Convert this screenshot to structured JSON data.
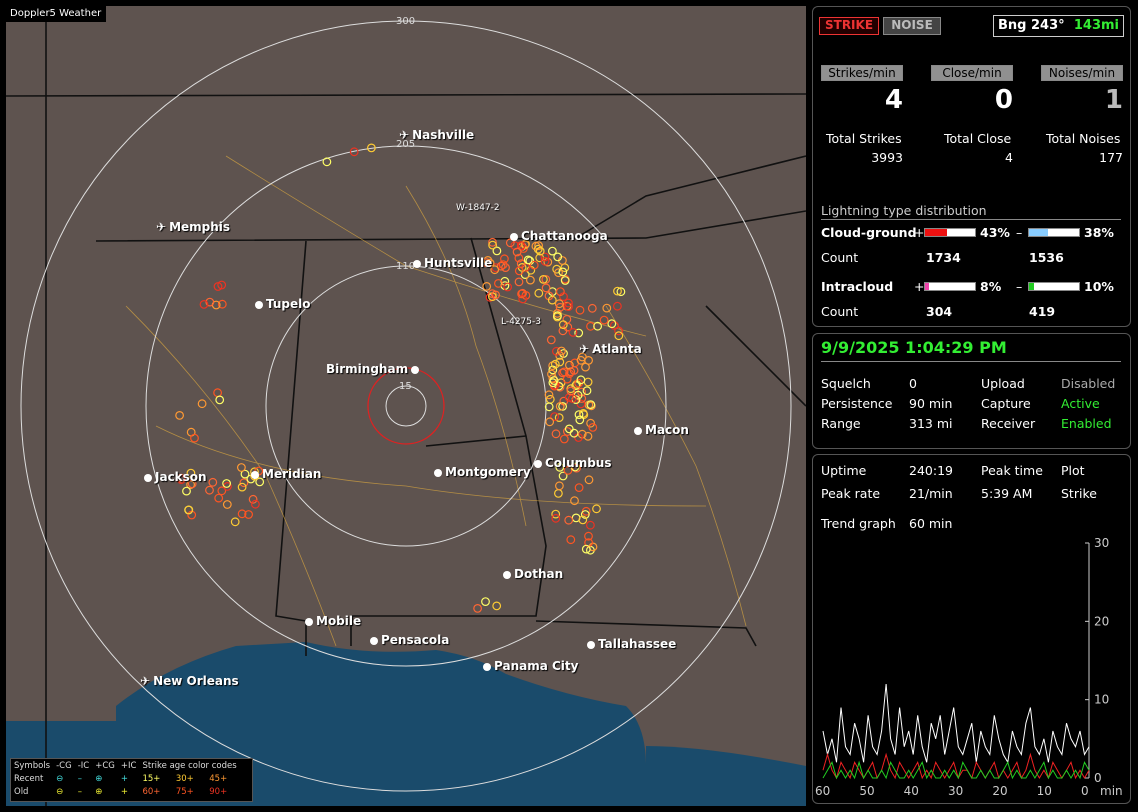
{
  "app": {
    "title": "Doppler5 Weather"
  },
  "map": {
    "rings": [
      "300",
      "205",
      "110",
      "15"
    ],
    "markers": {
      "west": "W-1847-2",
      "local": "L-4275-3"
    },
    "cities": [
      {
        "name": "Nashville",
        "type": "airport"
      },
      {
        "name": "Memphis",
        "type": "airport"
      },
      {
        "name": "Chattanooga",
        "type": "city"
      },
      {
        "name": "Huntsville",
        "type": "city"
      },
      {
        "name": "Tupelo",
        "type": "city"
      },
      {
        "name": "Atlanta",
        "type": "airport"
      },
      {
        "name": "Birmingham",
        "type": "city"
      },
      {
        "name": "Macon",
        "type": "city"
      },
      {
        "name": "Jackson",
        "type": "city"
      },
      {
        "name": "Meridian",
        "type": "city"
      },
      {
        "name": "Montgomery",
        "type": "city"
      },
      {
        "name": "Columbus",
        "type": "city"
      },
      {
        "name": "Dothan",
        "type": "city"
      },
      {
        "name": "Mobile",
        "type": "city"
      },
      {
        "name": "Pensacola",
        "type": "city"
      },
      {
        "name": "Tallahassee",
        "type": "city"
      },
      {
        "name": "Panama City",
        "type": "city"
      },
      {
        "name": "New Orleans",
        "type": "airport"
      }
    ],
    "legend": {
      "row_head": [
        "Symbols",
        "-CG",
        "-IC",
        "+CG",
        "+IC",
        "Strike age color codes"
      ],
      "recent_label": "Recent",
      "old_label": "Old",
      "recent_ages": [
        "15+",
        "30+",
        "45+"
      ],
      "old_ages": [
        "60+",
        "75+",
        "90+"
      ],
      "age_colors": [
        "#ffff66",
        "#ffcc33",
        "#ff9933",
        "#ff6633",
        "#ff5522",
        "#ee3322"
      ]
    }
  },
  "status": {
    "strike_button": "STRIKE",
    "noise_button": "NOISE",
    "bearing_label": "Bng 243°",
    "bearing_distance": "143mi",
    "strikes_per_min_label": "Strikes/min",
    "close_per_min_label": "Close/min",
    "noises_per_min_label": "Noises/min",
    "strikes_per_min": "4",
    "close_per_min": "0",
    "noises_per_min": "1",
    "total_strikes_label": "Total Strikes",
    "total_close_label": "Total Close",
    "total_noises_label": "Total Noises",
    "total_strikes": "3993",
    "total_close": "4",
    "total_noises": "177"
  },
  "distribution": {
    "title": "Lightning type distribution",
    "cg_label": "Cloud-ground",
    "ic_label": "Intracloud",
    "count_label": "Count",
    "plus": "+",
    "minus": "–",
    "cg_pos_pct": "43%",
    "cg_pos_fill": 0.43,
    "cg_pos_color": "#ee1111",
    "cg_neg_pct": "38%",
    "cg_neg_fill": 0.38,
    "cg_neg_color": "#88ccff",
    "cg_pos_count": "1734",
    "cg_neg_count": "1536",
    "ic_pos_pct": "8%",
    "ic_pos_fill": 0.08,
    "ic_pos_color": "#ee44aa",
    "ic_neg_pct": "10%",
    "ic_neg_fill": 0.1,
    "ic_neg_color": "#22cc22",
    "ic_pos_count": "304",
    "ic_neg_count": "419"
  },
  "settings": {
    "datetime": "9/9/2025 1:04:29 PM",
    "squelch_label": "Squelch",
    "squelch": "0",
    "persistence_label": "Persistence",
    "persistence": "90 min",
    "range_label": "Range",
    "range": "313 mi",
    "upload_label": "Upload",
    "upload": "Disabled",
    "capture_label": "Capture",
    "capture": "Active",
    "receiver_label": "Receiver",
    "receiver": "Enabled"
  },
  "trend": {
    "uptime_label": "Uptime",
    "uptime": "240:19",
    "peak_time_label": "Peak time",
    "peak_time": "5:39 AM",
    "plot_label": "Plot",
    "plot": "Strike",
    "peak_rate_label": "Peak rate",
    "peak_rate": "21/min",
    "trend_graph_label": "Trend graph",
    "trend_graph": "60 min",
    "y_ticks": [
      "30",
      "20",
      "10",
      "0"
    ],
    "x_ticks": [
      "60",
      "50",
      "40",
      "30",
      "20",
      "10",
      "0"
    ],
    "x_unit": "min"
  },
  "chart_data": {
    "type": "line",
    "xlabel": "min",
    "ylabel": "",
    "xlim": [
      60,
      0
    ],
    "ylim": [
      0,
      30
    ],
    "series": [
      {
        "color": "#ffffff",
        "values": [
          6,
          3,
          5,
          2,
          9,
          4,
          3,
          7,
          5,
          2,
          8,
          4,
          3,
          6,
          12,
          5,
          3,
          9,
          4,
          6,
          3,
          8,
          4,
          2,
          7,
          5,
          8,
          3,
          6,
          9,
          4,
          3,
          5,
          7,
          2,
          6,
          4,
          3,
          8,
          5,
          3,
          2,
          6,
          4,
          3,
          7,
          9,
          4,
          3,
          5,
          2,
          6,
          4,
          3,
          7,
          5,
          4,
          6,
          3,
          4
        ]
      },
      {
        "color": "#ee2222",
        "values": [
          1,
          3,
          1,
          0,
          2,
          1,
          0,
          2,
          1,
          0,
          1,
          2,
          0,
          1,
          3,
          1,
          0,
          2,
          1,
          0,
          1,
          2,
          0,
          1,
          0,
          2,
          1,
          0,
          1,
          2,
          0,
          1,
          1,
          0,
          2,
          1,
          0,
          1,
          2,
          0,
          1,
          0,
          1,
          2,
          0,
          1,
          3,
          1,
          0,
          1,
          0,
          2,
          1,
          0,
          1,
          2,
          0,
          1,
          0,
          1
        ]
      },
      {
        "color": "#22cc22",
        "values": [
          0,
          1,
          2,
          0,
          1,
          0,
          1,
          0,
          2,
          0,
          1,
          0,
          0,
          1,
          0,
          2,
          1,
          0,
          0,
          1,
          0,
          1,
          2,
          0,
          1,
          0,
          0,
          1,
          0,
          1,
          0,
          2,
          1,
          0,
          0,
          1,
          0,
          1,
          0,
          0,
          1,
          2,
          0,
          1,
          0,
          0,
          1,
          0,
          1,
          2,
          0,
          1,
          0,
          0,
          1,
          0,
          1,
          0,
          2,
          1
        ]
      }
    ]
  }
}
